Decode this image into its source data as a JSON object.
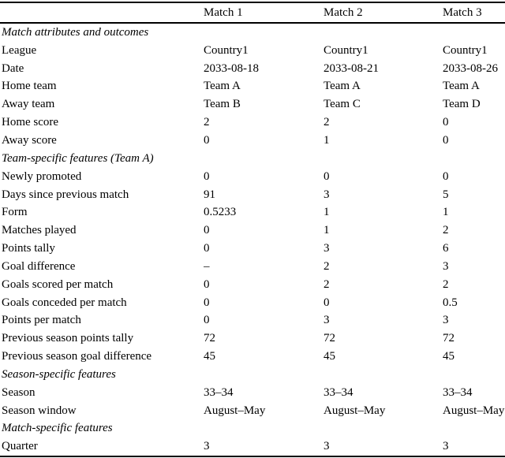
{
  "table": {
    "columns": [
      "Match 1",
      "Match 2",
      "Match 3"
    ],
    "sections": [
      {
        "heading": "Match attributes and outcomes",
        "rows": [
          {
            "label": "League",
            "values": [
              "Country1",
              "Country1",
              "Country1"
            ]
          },
          {
            "label": "Date",
            "values": [
              "2033-08-18",
              "2033-08-21",
              "2033-08-26"
            ]
          },
          {
            "label": "Home team",
            "values": [
              "Team A",
              "Team A",
              "Team A"
            ]
          },
          {
            "label": "Away team",
            "values": [
              "Team B",
              "Team C",
              "Team D"
            ]
          },
          {
            "label": "Home score",
            "values": [
              "2",
              "2",
              "0"
            ]
          },
          {
            "label": "Away score",
            "values": [
              "0",
              "1",
              "0"
            ]
          }
        ]
      },
      {
        "heading": "Team-specific features (Team A)",
        "rows": [
          {
            "label": "Newly promoted",
            "values": [
              "0",
              "0",
              "0"
            ]
          },
          {
            "label": "Days since previous match",
            "values": [
              "91",
              "3",
              "5"
            ]
          },
          {
            "label": "Form",
            "values": [
              "0.5233",
              "1",
              "1"
            ]
          },
          {
            "label": "Matches played",
            "values": [
              "0",
              "1",
              "2"
            ]
          },
          {
            "label": "Points tally",
            "values": [
              "0",
              "3",
              "6"
            ]
          },
          {
            "label": "Goal difference",
            "values": [
              "–",
              "2",
              "3"
            ]
          },
          {
            "label": "Goals scored per match",
            "values": [
              "0",
              "2",
              "2"
            ]
          },
          {
            "label": "Goals conceded per match",
            "values": [
              "0",
              "0",
              "0.5"
            ]
          },
          {
            "label": "Points per match",
            "values": [
              "0",
              "3",
              "3"
            ]
          },
          {
            "label": "Previous season points tally",
            "values": [
              "72",
              "72",
              "72"
            ]
          },
          {
            "label": "Previous season goal difference",
            "values": [
              "45",
              "45",
              "45"
            ]
          }
        ]
      },
      {
        "heading": "Season-specific features",
        "rows": [
          {
            "label": "Season",
            "values": [
              "33–34",
              "33–34",
              "33–34"
            ]
          },
          {
            "label": "Season window",
            "values": [
              "August–May",
              "August–May",
              "August–May"
            ]
          }
        ]
      },
      {
        "heading": "Match-specific features",
        "rows": [
          {
            "label": "Quarter",
            "values": [
              "3",
              "3",
              "3"
            ]
          }
        ]
      }
    ]
  }
}
